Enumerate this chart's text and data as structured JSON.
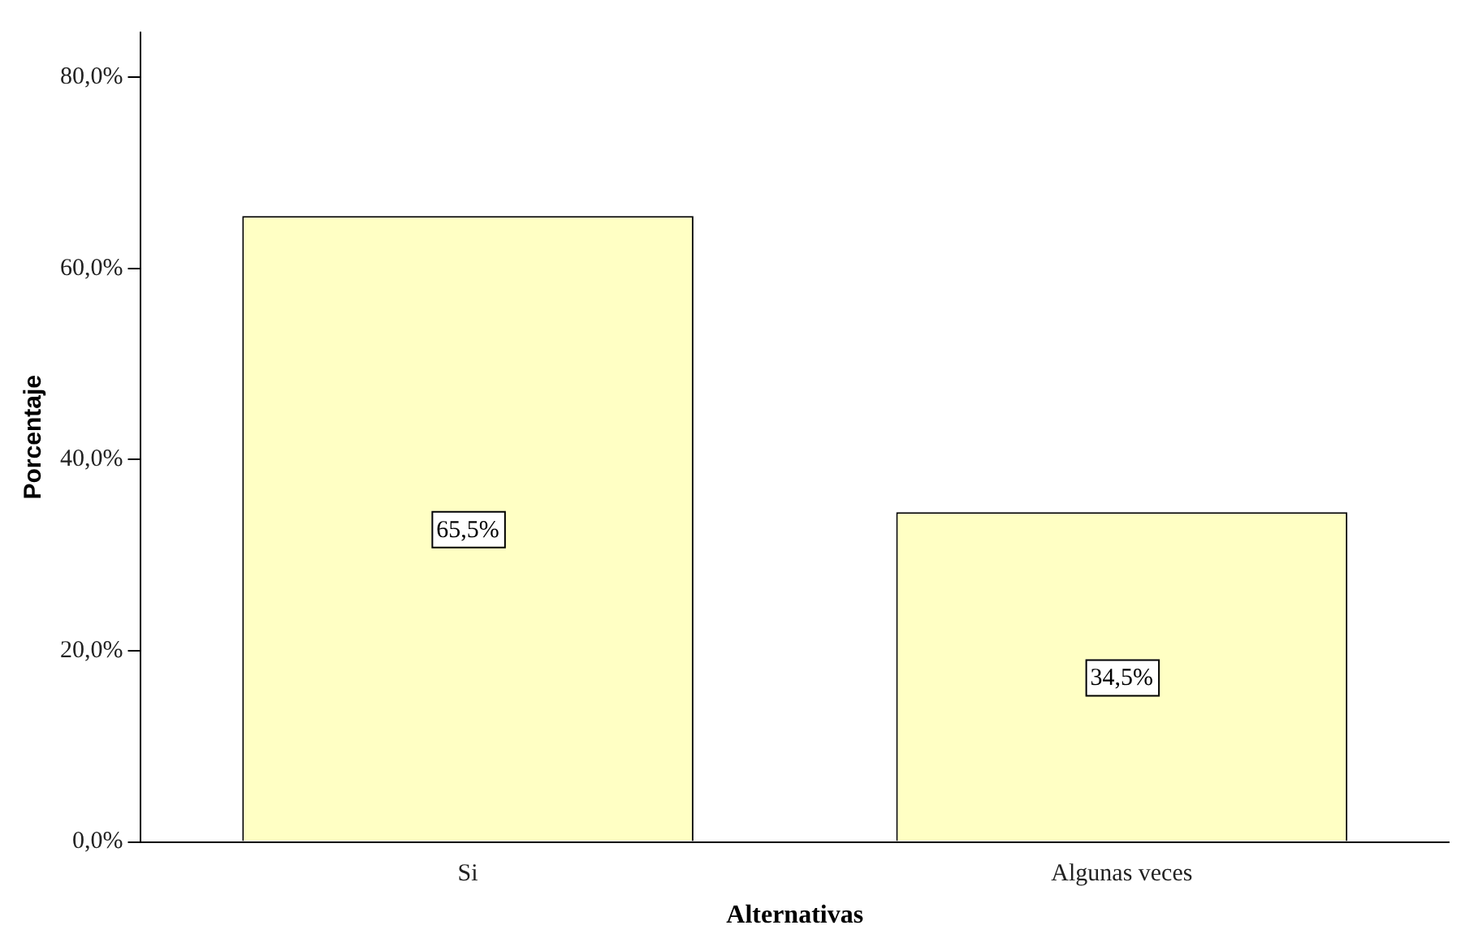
{
  "chart_data": {
    "type": "bar",
    "xlabel": "Alternativas",
    "ylabel": "Porcentaje",
    "categories": [
      "Si",
      "Algunas veces"
    ],
    "values": [
      65.5,
      34.5
    ],
    "color": "#ffffc4",
    "value_labels": [
      "65,5%",
      "34,5%"
    ],
    "ylim": [
      0,
      84.7
    ],
    "yticks": [
      {
        "value": 0,
        "label": "0,0%"
      },
      {
        "value": 20,
        "label": "20,0%"
      },
      {
        "value": 40,
        "label": "40,0%"
      },
      {
        "value": 60,
        "label": "60,0%"
      },
      {
        "value": 80,
        "label": "80,0%"
      }
    ],
    "grid": false,
    "legend": false
  }
}
